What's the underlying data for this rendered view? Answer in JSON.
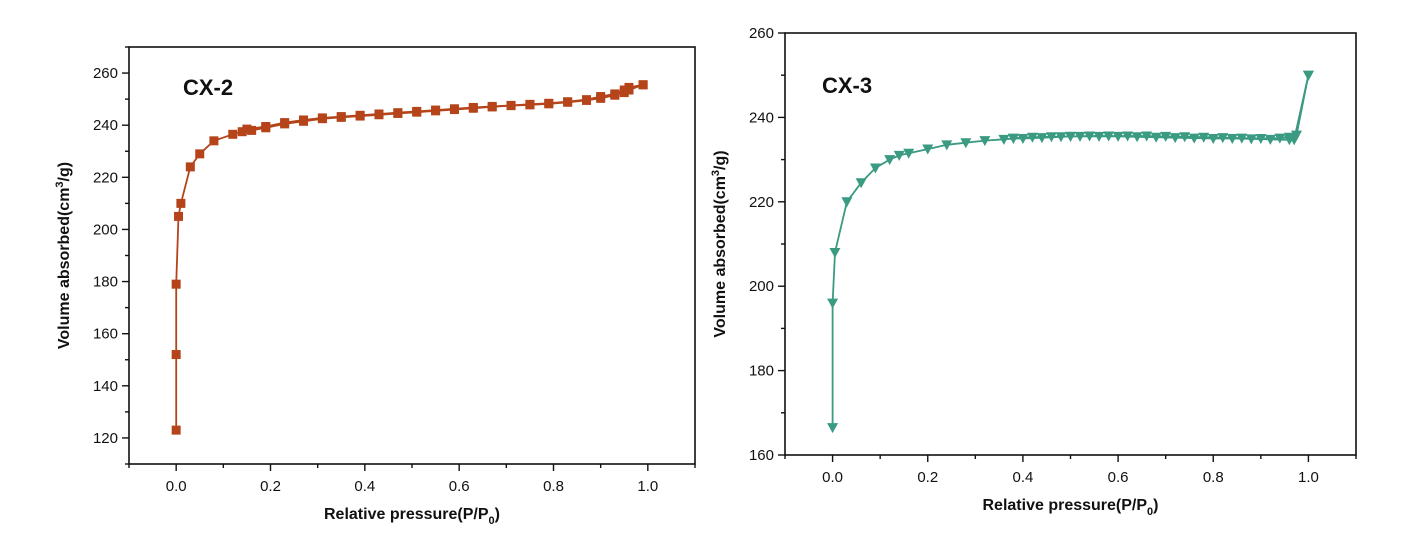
{
  "chart_data": [
    {
      "type": "line",
      "title": "",
      "annotation": "CX-2",
      "xlabel": "Relative pressure(P/P",
      "xlabel_sub": "0",
      "xlabel_tail": ")",
      "ylabel": "Volume absorbed(cm",
      "ylabel_sup": "3",
      "ylabel_tail": "/g)",
      "xlim": [
        -0.1,
        1.1
      ],
      "ylim": [
        110,
        270
      ],
      "xticks": [
        0.0,
        0.2,
        0.4,
        0.6,
        0.8,
        1.0
      ],
      "xtick_labels": [
        "0.0",
        "0.2",
        "0.4",
        "0.6",
        "0.8",
        "1.0"
      ],
      "yticks": [
        120,
        140,
        160,
        180,
        200,
        220,
        240,
        260
      ],
      "ytick_labels": [
        "120",
        "140",
        "160",
        "180",
        "200",
        "220",
        "240",
        "260"
      ],
      "marker": "square",
      "color": "#b5441b",
      "grid": false,
      "series": [
        {
          "x": [
            0.0,
            0.0,
            0.0,
            0.005,
            0.01,
            0.03,
            0.05,
            0.08,
            0.12,
            0.14,
            0.16,
            0.19,
            0.23,
            0.27,
            0.31,
            0.35,
            0.39,
            0.43,
            0.47,
            0.51,
            0.55,
            0.59,
            0.63,
            0.67,
            0.71,
            0.75,
            0.79,
            0.83,
            0.87,
            0.9,
            0.93,
            0.95,
            0.96,
            0.99
          ],
          "y": [
            123,
            152,
            179,
            205,
            210,
            224,
            229,
            234,
            236.5,
            237.5,
            238,
            239,
            240.5,
            241.5,
            242.5,
            243,
            243.5,
            244,
            244.5,
            245,
            245.5,
            246,
            246.5,
            247,
            247.5,
            247.8,
            248.2,
            248.8,
            249.5,
            250.3,
            251.5,
            252.5,
            253.5,
            255.5
          ]
        },
        {
          "x": [
            0.99,
            0.96,
            0.95,
            0.93,
            0.9,
            0.87,
            0.83,
            0.79,
            0.75,
            0.71,
            0.67,
            0.63,
            0.59,
            0.55,
            0.51,
            0.47,
            0.43,
            0.39,
            0.35,
            0.31,
            0.27,
            0.23,
            0.19,
            0.15
          ],
          "y": [
            255.5,
            254.5,
            253.5,
            252,
            251,
            249.8,
            249,
            248.4,
            248,
            247.6,
            247.2,
            246.8,
            246.3,
            245.8,
            245.3,
            244.8,
            244.3,
            243.8,
            243.3,
            242.8,
            242,
            241,
            239.5,
            238.5
          ]
        }
      ]
    },
    {
      "type": "line",
      "title": "",
      "annotation": "CX-3",
      "xlabel": "Relative pressure(P/P",
      "xlabel_sub": "0",
      "xlabel_tail": ")",
      "ylabel": "Volume absorbed(cm",
      "ylabel_sup": "3",
      "ylabel_tail": "/g)",
      "xlim": [
        -0.1,
        1.1
      ],
      "ylim": [
        160,
        260
      ],
      "xticks": [
        0.0,
        0.2,
        0.4,
        0.6,
        0.8,
        1.0
      ],
      "xtick_labels": [
        "0.0",
        "0.2",
        "0.4",
        "0.6",
        "0.8",
        "1.0"
      ],
      "yticks": [
        160,
        180,
        200,
        220,
        240,
        260
      ],
      "ytick_labels": [
        "160",
        "180",
        "200",
        "220",
        "240",
        "260"
      ],
      "marker": "triangle-down",
      "color": "#3a9a82",
      "grid": false,
      "series": [
        {
          "x": [
            0.0,
            0.0,
            0.005,
            0.03,
            0.06,
            0.09,
            0.12,
            0.14,
            0.16,
            0.2,
            0.24,
            0.28,
            0.32,
            0.36,
            0.38,
            0.4,
            0.44,
            0.48,
            0.5,
            0.52,
            0.56,
            0.6,
            0.64,
            0.68,
            0.72,
            0.76,
            0.8,
            0.84,
            0.88,
            0.92,
            0.96,
            0.97,
            1.0
          ],
          "y": [
            166.5,
            196,
            208,
            220,
            224.5,
            228,
            230,
            231,
            231.5,
            232.5,
            233.5,
            234,
            234.5,
            234.8,
            235,
            235,
            235.2,
            235.4,
            235.5,
            235.5,
            235.5,
            235.5,
            235.4,
            235.3,
            235.2,
            235.1,
            235,
            235,
            234.9,
            234.8,
            234.7,
            234.7,
            250
          ]
        },
        {
          "x": [
            1.0,
            0.975,
            0.96,
            0.94,
            0.9,
            0.86,
            0.82,
            0.78,
            0.74,
            0.7,
            0.66,
            0.62,
            0.58,
            0.54,
            0.5,
            0.46,
            0.42,
            0.38
          ],
          "y": [
            250,
            235.8,
            235.3,
            235.1,
            235,
            235.1,
            235.2,
            235.3,
            235.4,
            235.5,
            235.6,
            235.6,
            235.6,
            235.6,
            235.5,
            235.4,
            235.3,
            235.1
          ]
        }
      ]
    }
  ]
}
